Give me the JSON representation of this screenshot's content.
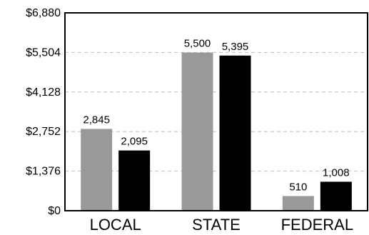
{
  "chart_data": {
    "type": "bar",
    "categories": [
      "LOCAL",
      "STATE",
      "FEDERAL"
    ],
    "series": [
      {
        "values": [
          2845,
          5500,
          510
        ],
        "color": "#999999"
      },
      {
        "values": [
          2095,
          5395,
          1008
        ],
        "color": "#000000"
      }
    ],
    "data_labels": [
      [
        "2,845",
        "5,500",
        "510"
      ],
      [
        "2,095",
        "5,395",
        "1,008"
      ]
    ],
    "ylim": [
      0,
      6880
    ],
    "yticks": [
      0,
      1376,
      2752,
      4128,
      5504,
      6880
    ],
    "ytick_labels": [
      "$0",
      "$1,376",
      "$2,752",
      "$4,128",
      "$5,504",
      "$6,880"
    ],
    "grid": true,
    "title": "",
    "xlabel": "",
    "ylabel": ""
  }
}
